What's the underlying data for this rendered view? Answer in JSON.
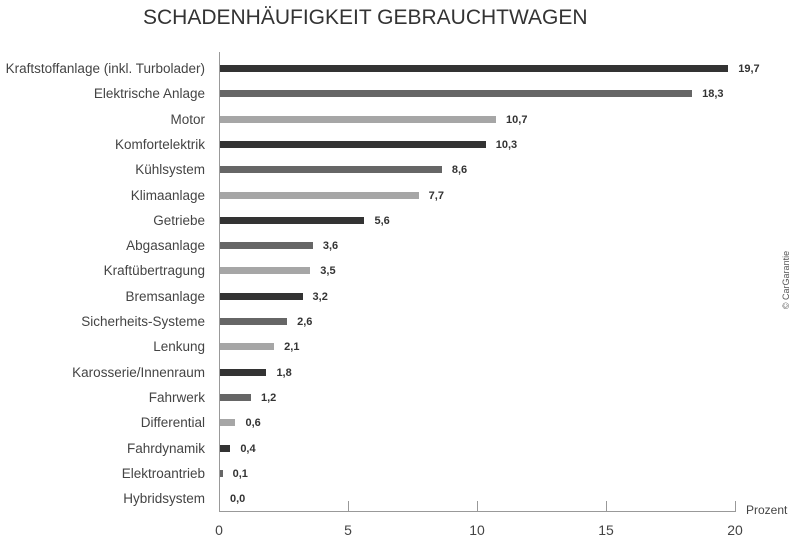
{
  "title": "SCHADENHÄUFIGKEIT GEBRAUCHTWAGEN",
  "copyright": "© CarGarantie",
  "axis": {
    "unit_label": "Prozent",
    "ticks": [
      "0",
      "5",
      "10",
      "15",
      "20"
    ]
  },
  "colors": {
    "dark": "#333333",
    "medium": "#666666",
    "light": "#a6a6a6"
  },
  "rows": [
    {
      "label": "Kraftstoffanlage (inkl. Turbolader)",
      "value": 19.7,
      "display": "19,7",
      "shade": "dark"
    },
    {
      "label": "Elektrische Anlage",
      "value": 18.3,
      "display": "18,3",
      "shade": "medium"
    },
    {
      "label": "Motor",
      "value": 10.7,
      "display": "10,7",
      "shade": "light"
    },
    {
      "label": "Komfortelektrik",
      "value": 10.3,
      "display": "10,3",
      "shade": "dark"
    },
    {
      "label": "Kühlsystem",
      "value": 8.6,
      "display": "8,6",
      "shade": "medium"
    },
    {
      "label": "Klimaanlage",
      "value": 7.7,
      "display": "7,7",
      "shade": "light"
    },
    {
      "label": "Getriebe",
      "value": 5.6,
      "display": "5,6",
      "shade": "dark"
    },
    {
      "label": "Abgasanlage",
      "value": 3.6,
      "display": "3,6",
      "shade": "medium"
    },
    {
      "label": "Kraftübertragung",
      "value": 3.5,
      "display": "3,5",
      "shade": "light"
    },
    {
      "label": "Bremsanlage",
      "value": 3.2,
      "display": "3,2",
      "shade": "dark"
    },
    {
      "label": "Sicherheits-Systeme",
      "value": 2.6,
      "display": "2,6",
      "shade": "medium"
    },
    {
      "label": "Lenkung",
      "value": 2.1,
      "display": "2,1",
      "shade": "light"
    },
    {
      "label": "Karosserie/Innenraum",
      "value": 1.8,
      "display": "1,8",
      "shade": "dark"
    },
    {
      "label": "Fahrwerk",
      "value": 1.2,
      "display": "1,2",
      "shade": "medium"
    },
    {
      "label": "Differential",
      "value": 0.6,
      "display": "0,6",
      "shade": "light"
    },
    {
      "label": "Fahrdynamik",
      "value": 0.4,
      "display": "0,4",
      "shade": "dark"
    },
    {
      "label": "Elektroantrieb",
      "value": 0.1,
      "display": "0,1",
      "shade": "medium"
    },
    {
      "label": "Hybridsystem",
      "value": 0.0,
      "display": "0,0",
      "shade": "light"
    }
  ],
  "chart_data": {
    "type": "bar",
    "orientation": "horizontal",
    "title": "SCHADENHÄUFIGKEIT GEBRAUCHTWAGEN",
    "xlabel": "Prozent",
    "ylabel": "",
    "xlim": [
      0,
      20
    ],
    "xticks": [
      0,
      5,
      10,
      15,
      20
    ],
    "grid": false,
    "legend": null,
    "annotations": [
      "© CarGarantie"
    ],
    "categories": [
      "Kraftstoffanlage (inkl. Turbolader)",
      "Elektrische Anlage",
      "Motor",
      "Komfortelektrik",
      "Kühlsystem",
      "Klimaanlage",
      "Getriebe",
      "Abgasanlage",
      "Kraftübertragung",
      "Bremsanlage",
      "Sicherheits-Systeme",
      "Lenkung",
      "Karosserie/Innenraum",
      "Fahrwerk",
      "Differential",
      "Fahrdynamik",
      "Elektroantrieb",
      "Hybridsystem"
    ],
    "values": [
      19.7,
      18.3,
      10.7,
      10.3,
      8.6,
      7.7,
      5.6,
      3.6,
      3.5,
      3.2,
      2.6,
      2.1,
      1.8,
      1.2,
      0.6,
      0.4,
      0.1,
      0.0
    ]
  }
}
